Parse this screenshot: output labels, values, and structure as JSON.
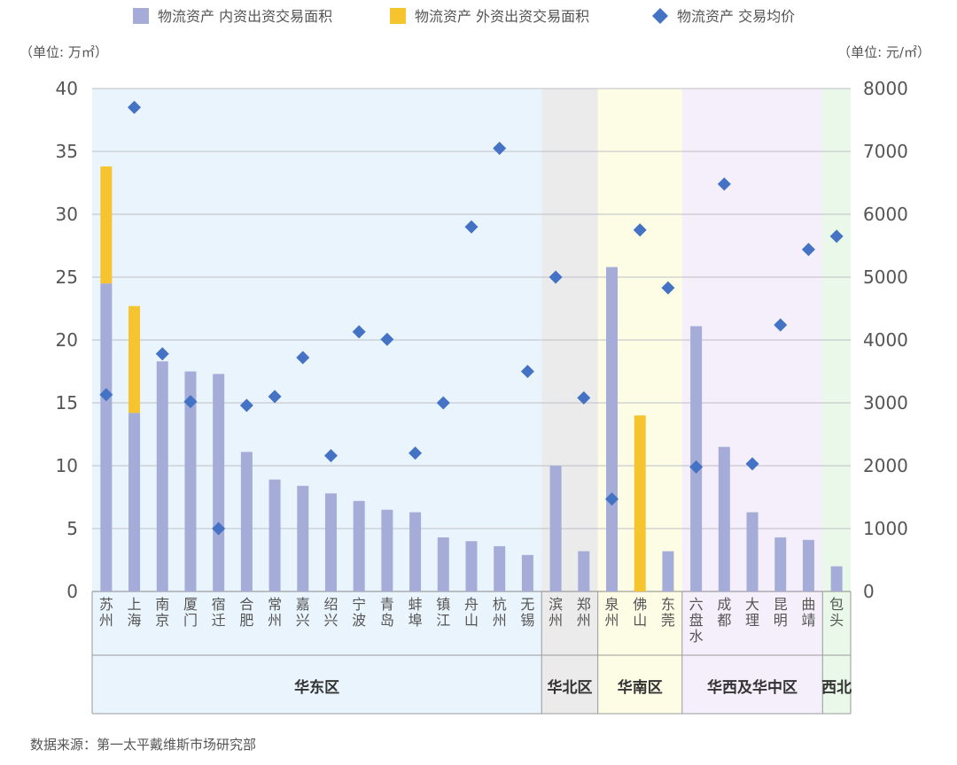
{
  "chart_data": {
    "type": "bar",
    "categories": [
      "苏州",
      "上海",
      "南京",
      "厦门",
      "宿迁",
      "合肥",
      "常州",
      "嘉兴",
      "绍兴",
      "宁波",
      "青岛",
      "蚌埠",
      "镇江",
      "舟山",
      "杭州",
      "无锡",
      "滨州",
      "郑州",
      "泉州",
      "佛山",
      "东莞",
      "六盘水",
      "成都",
      "大理",
      "昆明",
      "曲靖",
      "包头"
    ],
    "series": [
      {
        "name": "物流资产 内资出资交易面积",
        "kind": "bar",
        "axis": "left",
        "color": "#a6acd8",
        "values": [
          24.5,
          14.2,
          18.3,
          17.5,
          17.3,
          11.1,
          8.9,
          8.4,
          7.8,
          7.2,
          6.5,
          6.3,
          4.3,
          4.0,
          3.6,
          2.9,
          10.0,
          3.2,
          25.8,
          0,
          3.2,
          21.1,
          11.5,
          6.3,
          4.3,
          4.1,
          2.0
        ]
      },
      {
        "name": "物流资产 外资出资交易面积",
        "kind": "bar",
        "axis": "left",
        "color": "#f6c42e",
        "values": [
          9.3,
          8.5,
          0,
          0,
          0,
          0,
          0,
          0,
          0,
          0,
          0,
          0,
          0,
          0,
          0,
          0,
          0,
          0,
          0,
          14.0,
          0,
          0,
          0,
          0,
          0,
          0,
          0
        ]
      },
      {
        "name": "物流资产 交易均价",
        "kind": "scatter",
        "axis": "right",
        "color": "#4472c4",
        "values": [
          3130,
          7700,
          3780,
          3020,
          1000,
          2960,
          3100,
          3720,
          2160,
          4130,
          4010,
          2200,
          3000,
          5800,
          7050,
          3500,
          5000,
          3080,
          1470,
          5750,
          4830,
          1980,
          6480,
          2030,
          4240,
          5440,
          5650
        ]
      }
    ],
    "regions": [
      {
        "name": "华东区",
        "start": 0,
        "end": 15,
        "color": "#eaf4fc"
      },
      {
        "name": "华北区",
        "start": 16,
        "end": 17,
        "color": "#ebebeb"
      },
      {
        "name": "华南区",
        "start": 18,
        "end": 20,
        "color": "#fdfde6"
      },
      {
        "name": "华西及华中区",
        "start": 21,
        "end": 25,
        "color": "#f5eefb"
      },
      {
        "name": "西北",
        "start": 26,
        "end": 26,
        "color": "#e9f8e8"
      }
    ],
    "ylim": [
      0,
      40
    ],
    "y_ticks": [
      "0",
      "5",
      "10",
      "15",
      "20",
      "25",
      "30",
      "35",
      "40"
    ],
    "y2lim": [
      0,
      8000
    ],
    "y2_ticks": [
      "0",
      "1000",
      "2000",
      "3000",
      "4000",
      "5000",
      "6000",
      "7000",
      "8000"
    ],
    "y_unit": "（单位: 万㎡）",
    "y2_unit": "（单位: 元/㎡）",
    "grid": true,
    "legend_position": "top-center"
  },
  "source": "数据来源：第一太平戴维斯市场研究部"
}
